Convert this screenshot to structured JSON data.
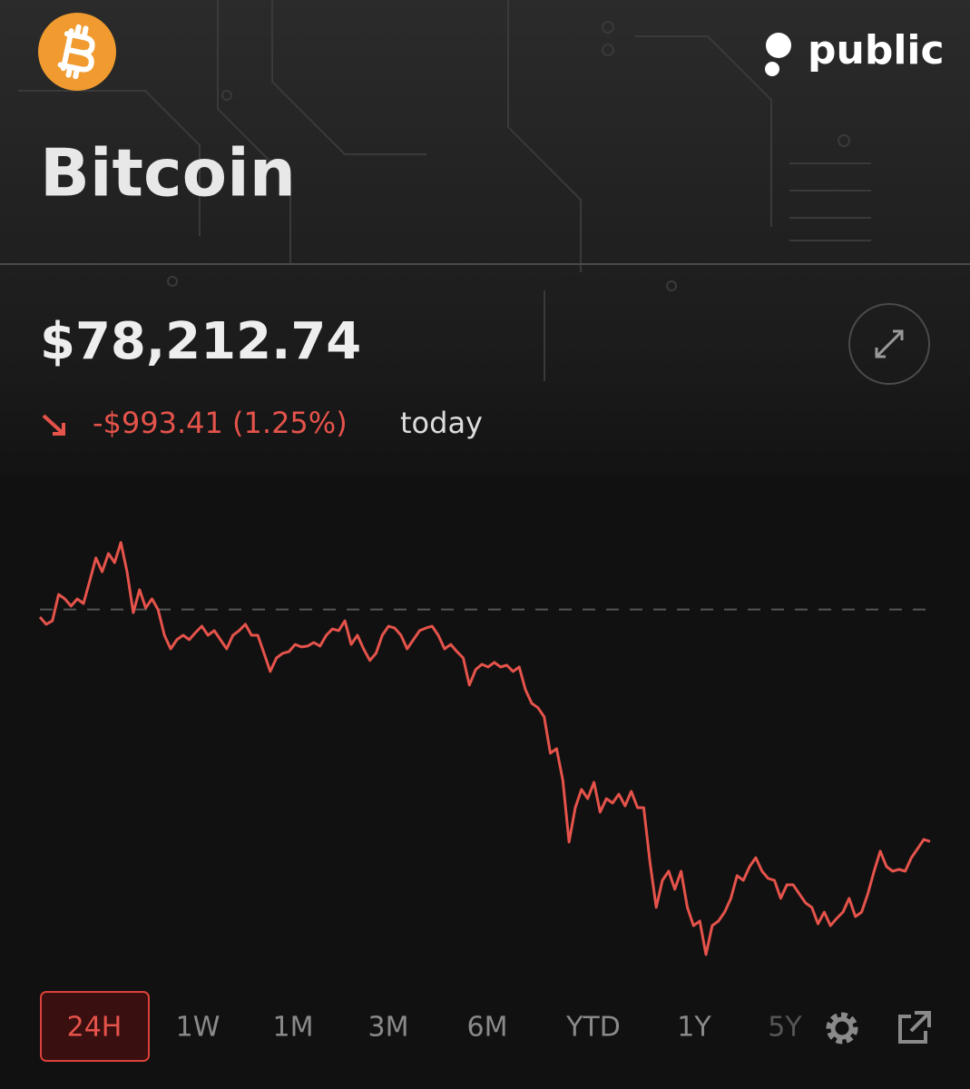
{
  "header": {
    "brand": "public",
    "title": "Bitcoin"
  },
  "price": "$78,212.74",
  "change": {
    "amount": "-$993.41 (1.25%)",
    "suffix": "today"
  },
  "chart_data": {
    "type": "line",
    "color": "#e5534b",
    "ylim": [
      77620,
      79640
    ],
    "baseline": 79206.15,
    "values": [
      79174,
      79143,
      79158,
      79271,
      79252,
      79221,
      79252,
      79232,
      79329,
      79427,
      79368,
      79446,
      79407,
      79493,
      79368,
      79193,
      79291,
      79213,
      79252,
      79205,
      79096,
      79038,
      79077,
      79096,
      79077,
      79108,
      79135,
      79096,
      79116,
      79077,
      79038,
      79096,
      79116,
      79143,
      79096,
      79096,
      79019,
      78941,
      78999,
      79019,
      79026,
      79057,
      79046,
      79050,
      79065,
      79050,
      79096,
      79123,
      79116,
      79158,
      79057,
      79096,
      79038,
      78988,
      79019,
      79096,
      79135,
      79127,
      79096,
      79038,
      79077,
      79116,
      79127,
      79135,
      79096,
      79038,
      79057,
      79026,
      78999,
      78883,
      78949,
      78972,
      78960,
      78980,
      78960,
      78968,
      78941,
      78960,
      78863,
      78805,
      78786,
      78747,
      78591,
      78611,
      78475,
      78211,
      78358,
      78436,
      78397,
      78467,
      78339,
      78397,
      78378,
      78416,
      78366,
      78428,
      78358,
      78358,
      78125,
      77931,
      78047,
      78086,
      78009,
      78086,
      77931,
      77853,
      77873,
      77729,
      77853,
      77873,
      77911,
      77970,
      78067,
      78047,
      78106,
      78144,
      78086,
      78055,
      78047,
      77970,
      78028,
      78028,
      77989,
      77950,
      77931,
      77861,
      77911,
      77853,
      77884,
      77911,
      77970,
      77892,
      77911,
      77989,
      78086,
      78172,
      78106,
      78086,
      78094,
      78086,
      78144,
      78183,
      78222,
      78213
    ]
  },
  "ranges": {
    "items": [
      "24H",
      "1W",
      "1M",
      "3M",
      "6M",
      "YTD",
      "1Y",
      "5Y"
    ],
    "selected": 0
  }
}
